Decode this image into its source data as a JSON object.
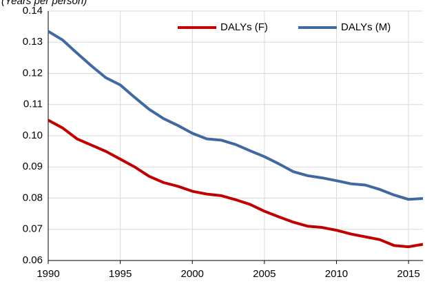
{
  "chart_data": {
    "type": "line",
    "y_label": "(Years per person)",
    "x": [
      1990,
      1991,
      1992,
      1993,
      1994,
      1995,
      1996,
      1997,
      1998,
      1999,
      2000,
      2001,
      2002,
      2003,
      2004,
      2005,
      2006,
      2007,
      2008,
      2009,
      2010,
      2011,
      2012,
      2013,
      2014,
      2015,
      2016
    ],
    "series": [
      {
        "name": "DALYs (F)",
        "color": "#c00000",
        "values": [
          0.105,
          0.1025,
          0.099,
          0.097,
          0.095,
          0.0925,
          0.09,
          0.087,
          0.085,
          0.0838,
          0.0822,
          0.0813,
          0.0808,
          0.0795,
          0.078,
          0.0758,
          0.074,
          0.0723,
          0.071,
          0.0706,
          0.0697,
          0.0685,
          0.0676,
          0.0667,
          0.0648,
          0.0644,
          0.0652
        ]
      },
      {
        "name": "DALYs (M)",
        "color": "#41699f",
        "values": [
          0.1335,
          0.1307,
          0.1265,
          0.1224,
          0.1186,
          0.1163,
          0.1123,
          0.1085,
          0.1055,
          0.1033,
          0.1008,
          0.099,
          0.0986,
          0.0972,
          0.0952,
          0.0933,
          0.091,
          0.0885,
          0.0872,
          0.0865,
          0.0856,
          0.0846,
          0.0842,
          0.0828,
          0.081,
          0.0796,
          0.0799
        ]
      }
    ],
    "xlim": [
      1990,
      2016
    ],
    "xticks": [
      1990,
      1995,
      2000,
      2005,
      2010,
      2015
    ],
    "ylim": [
      0.06,
      0.14
    ],
    "yticks": [
      0.06,
      0.07,
      0.08,
      0.09,
      {
        "value": 0.1,
        "label": "0.10"
      },
      0.11,
      0.12,
      0.13,
      0.14
    ],
    "grid": true,
    "legend": "top-right"
  }
}
